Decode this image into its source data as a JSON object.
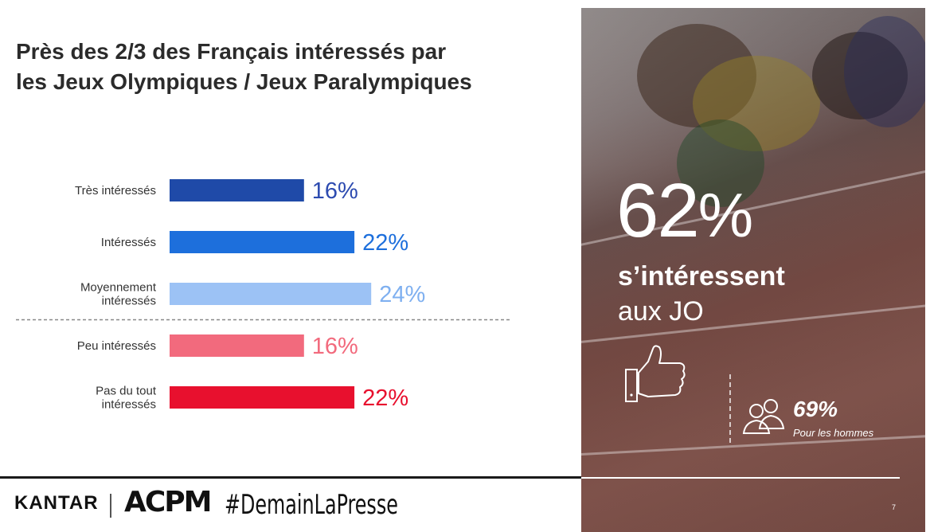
{
  "title_line1": "Près des 2/3 des Français intéressés par",
  "title_line2": "les Jeux Olympiques / Jeux Paralympiques",
  "chart_data": {
    "type": "bar",
    "orientation": "horizontal",
    "title": "Près des 2/3 des Français intéressés par les Jeux Olympiques / Jeux Paralympiques",
    "unit": "%",
    "categories": [
      [
        "Très intéressés"
      ],
      [
        "Intéressés"
      ],
      [
        "Moyennement",
        "intéressés"
      ],
      [
        "Peu intéressés"
      ],
      [
        "Pas du tout",
        "intéressés"
      ]
    ],
    "values": [
      16,
      22,
      24,
      16,
      22
    ],
    "value_labels": [
      "16%",
      "22%",
      "24%",
      "16%",
      "22%"
    ],
    "colors": [
      "#1f4aa8",
      "#1d6fdc",
      "#9cc2f5",
      "#f26a7d",
      "#e8102e"
    ],
    "label_colors": [
      "#2d4bb0",
      "#1d6fdc",
      "#7fb0f0",
      "#f26a7d",
      "#e8102e"
    ],
    "divider_after_index": 2
  },
  "panel": {
    "big_number": "62",
    "big_symbol": "%",
    "headline_bold": "s’intéressent",
    "headline_normal": "aux JO",
    "men_pct": "69%",
    "men_label": "Pour les hommes",
    "page_number": "7",
    "icons": [
      "thumbs-up-icon",
      "people-icon"
    ]
  },
  "footer": {
    "kantar": "KANTAR",
    "acpm": "ACPM",
    "hashtag": "#DemainLaPresse"
  }
}
